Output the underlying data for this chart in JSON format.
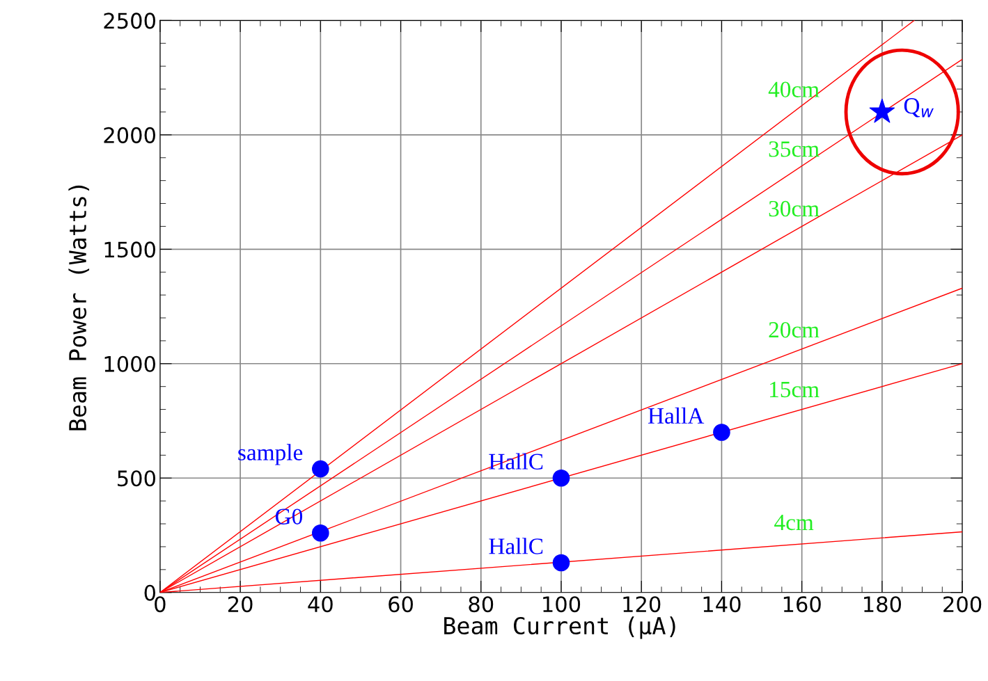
{
  "chart_data": {
    "type": "line",
    "xlabel": "Beam Current (μA)",
    "ylabel": "Beam Power (Watts)",
    "xlim": [
      0,
      200
    ],
    "ylim": [
      0,
      2500
    ],
    "xticks": [
      0,
      20,
      40,
      60,
      80,
      100,
      120,
      140,
      160,
      180,
      200
    ],
    "yticks": [
      0,
      500,
      1000,
      1500,
      2000,
      2500
    ],
    "grid": true,
    "legend": false,
    "marker": "none",
    "line_style": "solid",
    "series": [
      {
        "name": "40cm",
        "color": "#ff0000",
        "x": [
          0,
          188
        ],
        "values": [
          0,
          2500
        ]
      },
      {
        "name": "35cm",
        "color": "#ff0000",
        "x": [
          0,
          200
        ],
        "values": [
          0,
          2330
        ]
      },
      {
        "name": "30cm",
        "color": "#ff0000",
        "x": [
          0,
          200
        ],
        "values": [
          0,
          2000
        ]
      },
      {
        "name": "20cm",
        "color": "#ff0000",
        "x": [
          0,
          200
        ],
        "values": [
          0,
          1330
        ]
      },
      {
        "name": "15cm",
        "color": "#ff0000",
        "x": [
          0,
          200
        ],
        "values": [
          0,
          1000
        ]
      },
      {
        "name": "4cm",
        "color": "#ff0000",
        "x": [
          0,
          200
        ],
        "values": [
          0,
          265
        ]
      },
      {
        "type": "scatter",
        "marker": "circle",
        "color": "#0000ff",
        "x": [
          40,
          40,
          100,
          100,
          140
        ],
        "values": [
          540,
          260,
          500,
          130,
          700
        ],
        "value_labels": [
          "sample",
          "G0",
          "HallC",
          "HallC",
          "HallA"
        ]
      },
      {
        "type": "scatter",
        "marker": "star",
        "color": "#0000ff",
        "x": [
          180
        ],
        "values": [
          2100
        ],
        "value_labels": [
          "Q$_{w}$"
        ]
      }
    ]
  }
}
